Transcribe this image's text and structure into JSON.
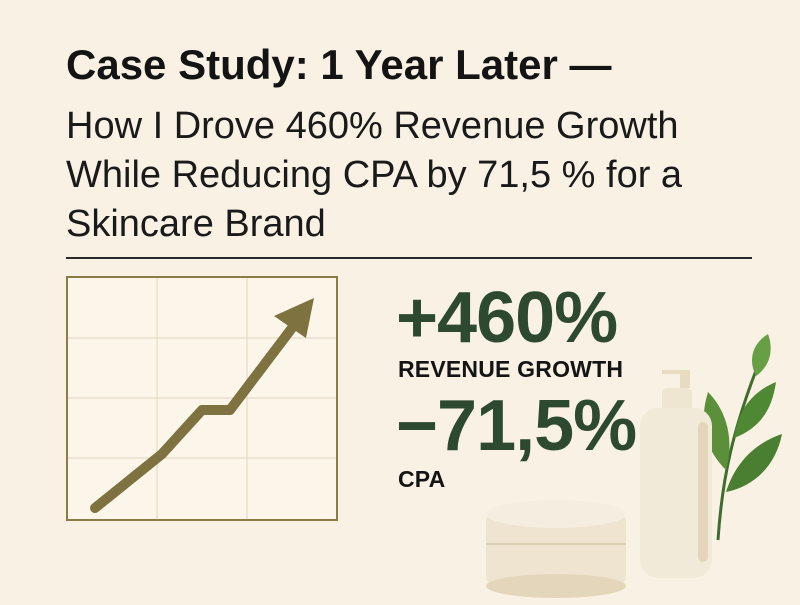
{
  "header": {
    "title": "Case Study: 1 Year Later —",
    "subtitle": "How I Drove 460% Revenue Growth While Reducing CPA by 71,5 % for a Skincare Brand"
  },
  "stats": {
    "revenue": {
      "value": "+460%",
      "label": "REVENUE GROWTH"
    },
    "cpa": {
      "value": "−71,5%",
      "label": "CPA"
    }
  },
  "colors": {
    "background": "#f9f1e4",
    "accent_green": "#2d4a30",
    "trend_arrow": "#7d7240",
    "chart_frame": "#8a7c45",
    "text": "#141414"
  },
  "icons": {
    "chart": "trend-up-arrow-chart",
    "decoration": "skincare-bottle-jar-and-leaves"
  }
}
